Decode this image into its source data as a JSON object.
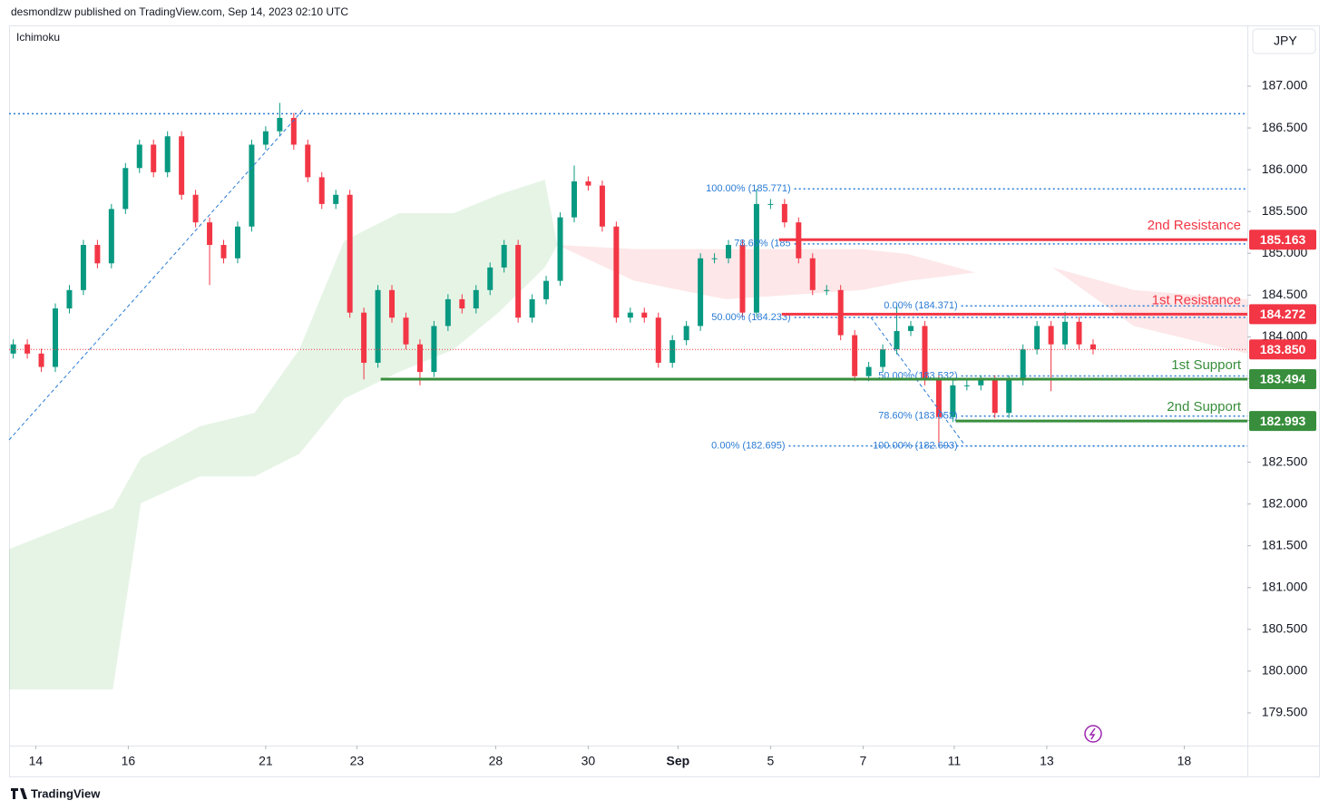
{
  "header": "desmondlzw published on TradingView.com, Sep 14, 2023 02:10 UTC",
  "indicator": "Ichimoku",
  "currency": "JPY",
  "footer": "TradingView",
  "chart_data": {
    "type": "candlestick",
    "up_color": "#089981",
    "down_color": "#f23645",
    "xlim": [
      -0.3,
      88.0
    ],
    "ylim": [
      179.109,
      187.727
    ],
    "xticks": [
      {
        "value": 1.6,
        "label": "14"
      },
      {
        "value": 8.2,
        "label": "16"
      },
      {
        "value": 18.0,
        "label": "21"
      },
      {
        "value": 24.5,
        "label": "23"
      },
      {
        "value": 34.4,
        "label": "28"
      },
      {
        "value": 41.0,
        "label": "30"
      },
      {
        "value": 47.4,
        "label": "Sep"
      },
      {
        "value": 54.0,
        "label": "5"
      },
      {
        "value": 60.6,
        "label": "7"
      },
      {
        "value": 67.1,
        "label": "11"
      },
      {
        "value": 73.7,
        "label": "13"
      },
      {
        "value": 83.5,
        "label": "18"
      }
    ],
    "yticks": [
      {
        "value": 187,
        "label": "187.000"
      },
      {
        "value": 186.5,
        "label": "186.500"
      },
      {
        "value": 186,
        "label": "186.000"
      },
      {
        "value": 185.5,
        "label": "185.500"
      },
      {
        "value": 185,
        "label": "185.000"
      },
      {
        "value": 184.5,
        "label": "184.500"
      },
      {
        "value": 184,
        "label": "184.000"
      },
      {
        "value": 183.5,
        "label": "183.500"
      },
      {
        "value": 183,
        "label": "183.000"
      },
      {
        "value": 182.5,
        "label": "182.500"
      },
      {
        "value": 182,
        "label": "182.000"
      },
      {
        "value": 181.5,
        "label": "181.500"
      },
      {
        "value": 181,
        "label": "181.000"
      },
      {
        "value": 180.5,
        "label": "180.500"
      },
      {
        "value": 180,
        "label": "180.000"
      },
      {
        "value": 179.5,
        "label": "179.500"
      }
    ],
    "open": [
      183.8,
      183.91,
      183.8,
      183.64,
      184.34,
      184.56,
      185.1,
      184.88,
      185.53,
      186.02,
      186.3,
      185.97,
      186.4,
      185.7,
      185.37,
      185.1,
      184.94,
      185.32,
      186.3,
      186.46,
      186.62,
      186.3,
      185.91,
      185.59,
      185.7,
      184.29,
      183.69,
      184.56,
      184.23,
      183.91,
      183.58,
      184.13,
      184.45,
      184.34,
      184.56,
      184.83,
      185.1,
      184.23,
      184.45,
      184.67,
      185.43,
      185.86,
      185.81,
      185.32,
      184.23,
      184.29,
      184.23,
      183.69,
      183.96,
      184.13,
      184.94,
      184.94,
      185.1,
      184.29,
      185.59,
      185.59,
      185.37,
      184.94,
      184.56,
      184.56,
      184.02,
      183.53,
      183.64,
      183.85,
      184.07,
      184.13,
      183.48,
      183.04,
      183.42,
      183.42,
      183.48,
      183.09,
      183.48,
      183.85,
      184.13,
      183.91,
      184.18,
      183.91
    ],
    "high": [
      183.97,
      183.97,
      183.86,
      184.4,
      184.62,
      185.16,
      185.16,
      185.59,
      186.08,
      186.36,
      186.36,
      186.46,
      186.46,
      185.76,
      185.43,
      185.16,
      185.38,
      186.36,
      186.52,
      186.8,
      186.68,
      186.36,
      185.97,
      185.76,
      185.76,
      184.35,
      184.62,
      184.62,
      184.29,
      183.97,
      184.19,
      184.51,
      184.51,
      184.62,
      184.89,
      185.16,
      185.16,
      184.51,
      184.73,
      185.49,
      186.05,
      185.92,
      185.87,
      185.38,
      184.35,
      184.35,
      184.29,
      184.02,
      184.19,
      185.0,
      185.0,
      185.16,
      185.16,
      185.77,
      185.65,
      185.65,
      185.43,
      185.0,
      184.62,
      184.62,
      184.08,
      183.7,
      183.91,
      184.37,
      184.19,
      184.19,
      183.54,
      183.48,
      183.48,
      183.54,
      183.54,
      183.54,
      183.91,
      184.19,
      184.19,
      184.3,
      184.24,
      183.97
    ],
    "low": [
      183.74,
      183.74,
      183.58,
      183.58,
      184.28,
      184.5,
      184.82,
      184.82,
      185.47,
      185.96,
      185.91,
      185.91,
      185.64,
      185.31,
      184.62,
      184.88,
      184.88,
      185.26,
      186.24,
      186.4,
      186.24,
      185.85,
      185.53,
      185.53,
      184.23,
      183.49,
      183.63,
      184.17,
      183.85,
      183.42,
      183.52,
      184.07,
      184.28,
      184.28,
      184.5,
      184.77,
      184.17,
      184.17,
      184.39,
      184.61,
      185.37,
      185.75,
      185.26,
      184.17,
      184.17,
      184.17,
      183.63,
      183.63,
      183.9,
      184.07,
      184.88,
      184.88,
      184.23,
      184.23,
      185.53,
      185.31,
      184.88,
      184.5,
      184.5,
      183.96,
      183.47,
      183.47,
      183.58,
      183.79,
      184.01,
      183.42,
      182.69,
      182.98,
      183.36,
      183.36,
      183.03,
      183.03,
      183.42,
      183.79,
      183.35,
      183.85,
      183.85,
      183.79
    ],
    "close": [
      183.91,
      183.8,
      183.64,
      184.34,
      184.56,
      185.1,
      184.88,
      185.53,
      186.02,
      186.3,
      185.97,
      186.4,
      185.7,
      185.37,
      185.1,
      184.94,
      185.32,
      186.3,
      186.46,
      186.62,
      186.3,
      185.91,
      185.59,
      185.7,
      184.29,
      183.69,
      184.56,
      184.23,
      183.91,
      183.58,
      184.13,
      184.45,
      184.34,
      184.56,
      184.83,
      185.1,
      184.23,
      184.45,
      184.67,
      185.43,
      185.86,
      185.81,
      185.32,
      184.23,
      184.29,
      184.23,
      183.69,
      183.96,
      184.13,
      184.94,
      184.94,
      185.1,
      184.29,
      185.59,
      185.59,
      185.37,
      184.94,
      184.56,
      184.56,
      184.02,
      183.53,
      183.64,
      183.85,
      184.07,
      184.13,
      183.48,
      183.04,
      183.42,
      183.42,
      183.48,
      183.09,
      183.48,
      183.85,
      184.13,
      183.91,
      184.18,
      183.91,
      183.85
    ],
    "cloud": [
      {
        "color": "rgba(76,175,80,0.14)",
        "x": [
          -0.3,
          7.1,
          9.1,
          13.3,
          17.2,
          20.4,
          23.6,
          27.5,
          31.4,
          34.6,
          37.9,
          38.8
        ],
        "upper": [
          181.46,
          181.95,
          182.55,
          182.93,
          183.09,
          183.85,
          185.15,
          185.48,
          185.48,
          185.7,
          185.88,
          185.1
        ],
        "lower": [
          179.78,
          179.78,
          182.01,
          182.33,
          182.33,
          182.6,
          183.26,
          183.58,
          183.85,
          184.29,
          184.83,
          185.1
        ]
      },
      {
        "color": "rgba(242,54,69,0.12)",
        "x": [
          38.8,
          44.3,
          50.8,
          60.5,
          63.8,
          68.6,
          74.1,
          79.9,
          88.0
        ],
        "upper": [
          185.1,
          185.05,
          185.05,
          185.05,
          184.99,
          184.77,
          184.83,
          184.56,
          184.45
        ],
        "lower": [
          185.1,
          184.67,
          184.45,
          184.56,
          184.67,
          184.77,
          184.83,
          184.13,
          183.8
        ]
      }
    ],
    "hlines": [
      186.67
    ],
    "fibs": [
      {
        "label": "100.00% (185.771)",
        "value": 185.771,
        "x_start": 55.7
      },
      {
        "label": "78.60% (185",
        "value": 185.113,
        "x_start": 55.7
      },
      {
        "label": "50.00% (184.233)",
        "value": 184.233,
        "x_start": 55.7
      },
      {
        "label": "0.00% (182.695)",
        "value": 182.695,
        "x_start": 55.3
      },
      {
        "label": "0.00% (184.371)",
        "value": 184.371,
        "x_start": 67.6
      },
      {
        "label": "50.00% (183.532)",
        "value": 183.532,
        "x_start": 67.6
      },
      {
        "label": "78.60% (183.052)",
        "value": 183.052,
        "x_start": 67.6
      },
      {
        "label": "100.00% (182.693)",
        "value": 182.693,
        "x_start": 67.6
      }
    ],
    "fib_color": "#2a7bd4",
    "levels": [
      {
        "name": "2nd Resistance",
        "price": {
          "value": 185.163,
          "label": "185.163"
        },
        "color": "#f23645",
        "x_start": 54.6
      },
      {
        "name": "1st Resistance",
        "price": {
          "value": 184.272,
          "label": "184.272"
        },
        "color": "#f23645",
        "x_start": 54.8
      },
      {
        "name": "1st Support",
        "price": {
          "value": 183.494,
          "label": "183.494"
        },
        "color": "#388e3c",
        "x_start": 26.2
      },
      {
        "name": "2nd Support",
        "price": {
          "value": 182.993,
          "label": "182.993"
        },
        "color": "#388e3c",
        "x_start": 67.2
      }
    ],
    "last_price": {
      "value": 183.85,
      "label": "183.850"
    }
  }
}
